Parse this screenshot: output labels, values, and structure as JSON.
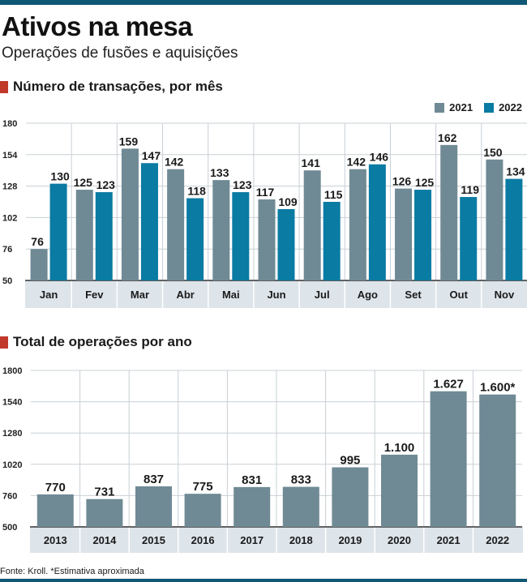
{
  "header": {
    "title": "Ativos na mesa",
    "subtitle": "Operações de fusões e aquisições"
  },
  "colors": {
    "s2021": "#6f8a95",
    "s2022": "#0a7ba3",
    "marker": "#c0392b",
    "axis_band": "#dde4ea",
    "gridline": "#c8d0d6",
    "accent_bar": "#0e5876"
  },
  "chart_data": [
    {
      "type": "bar",
      "title": "Número de transações, por mês",
      "categories": [
        "Jan",
        "Fev",
        "Mar",
        "Abr",
        "Mai",
        "Jun",
        "Jul",
        "Ago",
        "Set",
        "Out",
        "Nov"
      ],
      "series": [
        {
          "name": "2021",
          "values": [
            76,
            125,
            159,
            142,
            133,
            117,
            141,
            142,
            126,
            162,
            150
          ]
        },
        {
          "name": "2022",
          "values": [
            130,
            123,
            147,
            118,
            123,
            109,
            115,
            146,
            125,
            119,
            134
          ]
        }
      ],
      "yticks": [
        50,
        76,
        102,
        128,
        154,
        180
      ],
      "ylim": [
        50,
        180
      ],
      "xlabel": "",
      "ylabel": "",
      "legend": "top-right",
      "grid": true
    },
    {
      "type": "bar",
      "title": "Total de operações por ano",
      "categories": [
        "2013",
        "2014",
        "2015",
        "2016",
        "2017",
        "2018",
        "2019",
        "2020",
        "2021",
        "2022"
      ],
      "values": [
        770,
        731,
        837,
        775,
        831,
        833,
        995,
        1100,
        1627,
        1600
      ],
      "value_labels": [
        "770",
        "731",
        "837",
        "775",
        "831",
        "833",
        "995",
        "1.100",
        "1.627",
        "1.600*"
      ],
      "yticks": [
        500,
        760,
        1020,
        1280,
        1540,
        1800
      ],
      "ylim": [
        500,
        1800
      ],
      "xlabel": "",
      "ylabel": "",
      "grid": true
    }
  ],
  "footer": {
    "source": "Fonte: Kroll. *Estimativa aproximada"
  }
}
